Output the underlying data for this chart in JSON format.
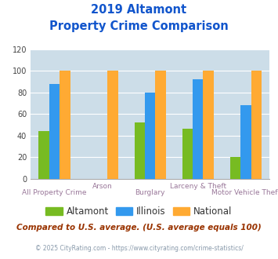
{
  "title_line1": "2019 Altamont",
  "title_line2": "Property Crime Comparison",
  "categories": [
    "All Property Crime",
    "Arson",
    "Burglary",
    "Larceny & Theft",
    "Motor Vehicle Theft"
  ],
  "altamont": [
    44,
    0,
    52,
    46,
    20
  ],
  "illinois": [
    88,
    0,
    80,
    92,
    68
  ],
  "national": [
    100,
    100,
    100,
    100,
    100
  ],
  "altamont_show": [
    true,
    false,
    true,
    true,
    true
  ],
  "illinois_show": [
    true,
    false,
    true,
    true,
    true
  ],
  "color_altamont": "#77bb22",
  "color_illinois": "#3399ee",
  "color_national": "#ffaa33",
  "ylim": [
    0,
    120
  ],
  "yticks": [
    0,
    20,
    40,
    60,
    80,
    100,
    120
  ],
  "top_labels": [
    "",
    "Arson",
    "",
    "Larceny & Theft",
    ""
  ],
  "bottom_labels": [
    "All Property Crime",
    "",
    "Burglary",
    "",
    "Motor Vehicle Theft"
  ],
  "footnote1": "Compared to U.S. average. (U.S. average equals 100)",
  "footnote2": "© 2025 CityRating.com - https://www.cityrating.com/crime-statistics/",
  "title_color": "#1155cc",
  "xticklabel_color": "#997799",
  "footnote1_color": "#993300",
  "footnote2_color": "#8899aa",
  "bg_color": "#ccdde8",
  "fig_bg": "#ffffff",
  "bar_width": 0.22,
  "legend_labels": [
    "Altamont",
    "Illinois",
    "National"
  ]
}
